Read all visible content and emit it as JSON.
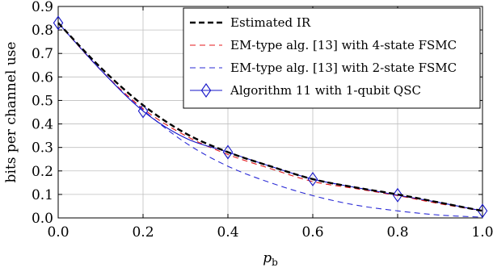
{
  "chart_data": {
    "type": "line",
    "xlabel": "p",
    "xlabel_sub": "b",
    "ylabel": "bits per channel use",
    "xlim": [
      0.0,
      1.0
    ],
    "ylim": [
      0.0,
      0.9
    ],
    "x_ticks": [
      "0.0",
      "0.2",
      "0.4",
      "0.6",
      "0.8",
      "1.0"
    ],
    "y_ticks": [
      "0.0",
      "0.1",
      "0.2",
      "0.3",
      "0.4",
      "0.5",
      "0.6",
      "0.7",
      "0.8",
      "0.9"
    ],
    "grid": true,
    "legend_position": "top-right",
    "series": [
      {
        "name": "Estimated IR",
        "color": "#000000",
        "style": "dashed-thick",
        "x": [
          0.0,
          0.1,
          0.2,
          0.3,
          0.4,
          0.5,
          0.6,
          0.7,
          0.8,
          0.9,
          1.0
        ],
        "y": [
          0.83,
          0.64,
          0.48,
          0.36,
          0.28,
          0.22,
          0.165,
          0.13,
          0.1,
          0.065,
          0.03
        ]
      },
      {
        "name": "EM-type alg. [13] with 4-state FSMC",
        "color": "#e41a1c",
        "style": "dashed",
        "x": [
          0.0,
          0.1,
          0.2,
          0.3,
          0.4,
          0.5,
          0.6,
          0.7,
          0.8,
          0.9,
          1.0
        ],
        "y": [
          0.83,
          0.63,
          0.465,
          0.35,
          0.27,
          0.21,
          0.155,
          0.125,
          0.095,
          0.06,
          0.03
        ]
      },
      {
        "name": "EM-type alg. [13] with 2-state FSMC",
        "color": "#2b2bd6",
        "style": "dashed",
        "x": [
          0.0,
          0.1,
          0.2,
          0.3,
          0.4,
          0.5,
          0.6,
          0.7,
          0.8,
          0.9,
          1.0
        ],
        "y": [
          0.83,
          0.63,
          0.46,
          0.32,
          0.22,
          0.15,
          0.095,
          0.055,
          0.03,
          0.012,
          0.003
        ]
      },
      {
        "name": "Algorithm 11 with 1-qubit QSC",
        "color": "#1414c8",
        "style": "solid-diamond",
        "x": [
          0.0,
          0.1,
          0.2,
          0.3,
          0.4,
          0.5,
          0.6,
          0.7,
          0.8,
          0.9,
          1.0
        ],
        "y": [
          0.83,
          0.63,
          0.455,
          0.34,
          0.28,
          0.22,
          0.165,
          0.13,
          0.097,
          0.065,
          0.03
        ],
        "marker_x": [
          0.0,
          0.2,
          0.4,
          0.6,
          0.8,
          1.0
        ]
      }
    ]
  }
}
